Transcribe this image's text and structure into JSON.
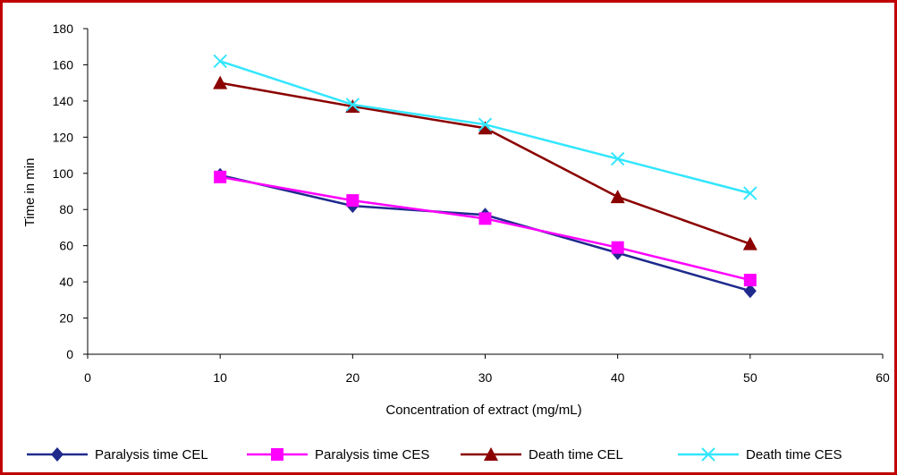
{
  "chart_data": {
    "type": "line",
    "title": "",
    "xlabel": "Concentration of extract (mg/mL)",
    "ylabel": "Time in min",
    "xlim": [
      0,
      60
    ],
    "ylim": [
      0,
      180
    ],
    "xticks": [
      0,
      10,
      20,
      30,
      40,
      50,
      60
    ],
    "yticks": [
      0,
      20,
      40,
      60,
      80,
      100,
      120,
      140,
      160,
      180
    ],
    "grid": false,
    "legend": "bottom",
    "x": [
      10,
      20,
      30,
      40,
      50
    ],
    "series": [
      {
        "name": "Paralysis time CEL",
        "values": [
          99,
          82,
          77,
          56,
          35
        ],
        "color": "#1f2a8c",
        "marker": "diamond"
      },
      {
        "name": "Paralysis time CES",
        "values": [
          98,
          85,
          75,
          59,
          41
        ],
        "color": "#ff00ff",
        "marker": "square"
      },
      {
        "name": "Death time CEL",
        "values": [
          150,
          137,
          125,
          87,
          61
        ],
        "color": "#8b0000",
        "marker": "triangle"
      },
      {
        "name": "Death time CES",
        "values": [
          162,
          138,
          127,
          108,
          89
        ],
        "color": "#33e6ff",
        "marker": "x"
      }
    ]
  }
}
